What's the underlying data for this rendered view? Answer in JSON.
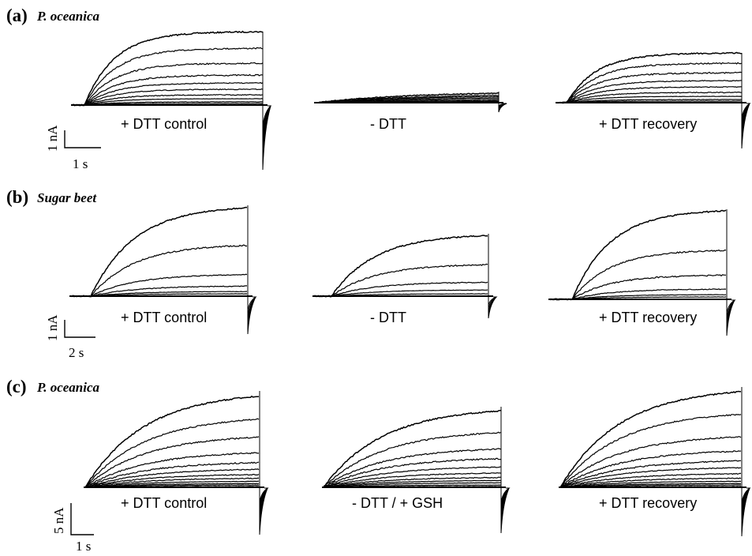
{
  "panels": [
    {
      "label": "(a)",
      "organism": "P. oceanica",
      "captions": [
        "+ DTT control",
        "- DTT",
        "+ DTT recovery"
      ],
      "scale": {
        "current": "1 nA",
        "time": "1 s"
      }
    },
    {
      "label": "(b)",
      "organism": "Sugar beet",
      "captions": [
        "+ DTT control",
        "- DTT",
        "+ DTT recovery"
      ],
      "scale": {
        "current": "1 nA",
        "time": "2 s"
      }
    },
    {
      "label": "(c)",
      "organism": "P. oceanica",
      "captions": [
        "+ DTT control",
        "- DTT / + GSH",
        "+ DTT recovery"
      ],
      "scale": {
        "current": "5 nA",
        "time": "1 s"
      }
    }
  ],
  "trace_color": "#000000"
}
